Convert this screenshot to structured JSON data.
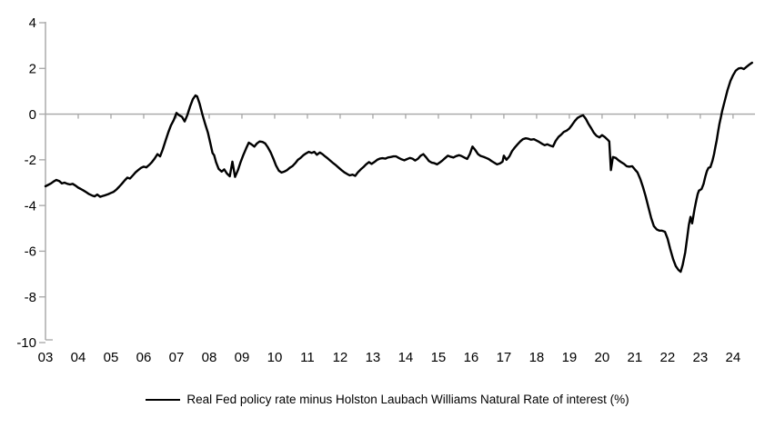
{
  "figure": {
    "legend": {
      "label": "Real Fed policy rate minus Holston Laubach Williams Natural Rate of interest (%)"
    }
  },
  "chart_data": {
    "type": "line",
    "title": "",
    "xlabel": "",
    "ylabel": "",
    "xlim": [
      2003,
      2024.67
    ],
    "ylim": [
      -10,
      4
    ],
    "y_ticks": [
      4,
      2,
      0,
      -2,
      -4,
      -6,
      -8,
      -10
    ],
    "x_tick_labels": [
      "03",
      "04",
      "05",
      "06",
      "07",
      "08",
      "09",
      "10",
      "11",
      "12",
      "13",
      "14",
      "15",
      "16",
      "17",
      "18",
      "19",
      "20",
      "21",
      "22",
      "23",
      "24"
    ],
    "grid": "zero-line-only",
    "legend_position": "bottom-center",
    "colors": {
      "line": "#000000",
      "axis": "#a6a6a6",
      "text": "#000000",
      "background": "#ffffff"
    },
    "series": [
      {
        "name": "Real Fed policy rate minus Holston Laubach Williams Natural Rate of interest (%)",
        "points": [
          [
            2003.0,
            -3.16
          ],
          [
            2003.08,
            -3.1
          ],
          [
            2003.17,
            -3.03
          ],
          [
            2003.25,
            -2.95
          ],
          [
            2003.33,
            -2.88
          ],
          [
            2003.42,
            -2.93
          ],
          [
            2003.5,
            -3.03
          ],
          [
            2003.58,
            -3.0
          ],
          [
            2003.67,
            -3.05
          ],
          [
            2003.75,
            -3.08
          ],
          [
            2003.83,
            -3.05
          ],
          [
            2003.92,
            -3.13
          ],
          [
            2004.0,
            -3.22
          ],
          [
            2004.08,
            -3.28
          ],
          [
            2004.17,
            -3.35
          ],
          [
            2004.25,
            -3.42
          ],
          [
            2004.33,
            -3.5
          ],
          [
            2004.42,
            -3.56
          ],
          [
            2004.5,
            -3.6
          ],
          [
            2004.58,
            -3.52
          ],
          [
            2004.67,
            -3.62
          ],
          [
            2004.75,
            -3.58
          ],
          [
            2004.83,
            -3.55
          ],
          [
            2004.92,
            -3.5
          ],
          [
            2005.0,
            -3.45
          ],
          [
            2005.08,
            -3.4
          ],
          [
            2005.17,
            -3.3
          ],
          [
            2005.25,
            -3.18
          ],
          [
            2005.33,
            -3.05
          ],
          [
            2005.42,
            -2.9
          ],
          [
            2005.5,
            -2.78
          ],
          [
            2005.58,
            -2.82
          ],
          [
            2005.67,
            -2.68
          ],
          [
            2005.75,
            -2.55
          ],
          [
            2005.83,
            -2.45
          ],
          [
            2005.92,
            -2.35
          ],
          [
            2006.0,
            -2.3
          ],
          [
            2006.08,
            -2.33
          ],
          [
            2006.17,
            -2.22
          ],
          [
            2006.25,
            -2.1
          ],
          [
            2006.33,
            -1.95
          ],
          [
            2006.42,
            -1.75
          ],
          [
            2006.5,
            -1.85
          ],
          [
            2006.58,
            -1.55
          ],
          [
            2006.67,
            -1.15
          ],
          [
            2006.75,
            -0.8
          ],
          [
            2006.83,
            -0.5
          ],
          [
            2006.92,
            -0.25
          ],
          [
            2007.0,
            0.05
          ],
          [
            2007.08,
            -0.05
          ],
          [
            2007.17,
            -0.12
          ],
          [
            2007.25,
            -0.32
          ],
          [
            2007.33,
            -0.05
          ],
          [
            2007.42,
            0.35
          ],
          [
            2007.5,
            0.65
          ],
          [
            2007.58,
            0.82
          ],
          [
            2007.63,
            0.78
          ],
          [
            2007.71,
            0.45
          ],
          [
            2007.79,
            0.0
          ],
          [
            2007.88,
            -0.45
          ],
          [
            2007.96,
            -0.8
          ],
          [
            2008.04,
            -1.3
          ],
          [
            2008.1,
            -1.7
          ],
          [
            2008.15,
            -1.8
          ],
          [
            2008.21,
            -2.1
          ],
          [
            2008.29,
            -2.4
          ],
          [
            2008.38,
            -2.52
          ],
          [
            2008.46,
            -2.42
          ],
          [
            2008.54,
            -2.6
          ],
          [
            2008.63,
            -2.72
          ],
          [
            2008.71,
            -2.08
          ],
          [
            2008.79,
            -2.75
          ],
          [
            2008.88,
            -2.45
          ],
          [
            2008.96,
            -2.1
          ],
          [
            2009.04,
            -1.8
          ],
          [
            2009.13,
            -1.5
          ],
          [
            2009.21,
            -1.25
          ],
          [
            2009.29,
            -1.32
          ],
          [
            2009.38,
            -1.42
          ],
          [
            2009.46,
            -1.28
          ],
          [
            2009.54,
            -1.2
          ],
          [
            2009.63,
            -1.22
          ],
          [
            2009.71,
            -1.28
          ],
          [
            2009.79,
            -1.45
          ],
          [
            2009.88,
            -1.68
          ],
          [
            2009.96,
            -1.95
          ],
          [
            2010.04,
            -2.25
          ],
          [
            2010.13,
            -2.48
          ],
          [
            2010.21,
            -2.56
          ],
          [
            2010.29,
            -2.52
          ],
          [
            2010.38,
            -2.45
          ],
          [
            2010.46,
            -2.35
          ],
          [
            2010.54,
            -2.28
          ],
          [
            2010.63,
            -2.15
          ],
          [
            2010.71,
            -2.0
          ],
          [
            2010.79,
            -1.92
          ],
          [
            2010.88,
            -1.8
          ],
          [
            2010.96,
            -1.72
          ],
          [
            2011.04,
            -1.65
          ],
          [
            2011.13,
            -1.7
          ],
          [
            2011.21,
            -1.65
          ],
          [
            2011.29,
            -1.78
          ],
          [
            2011.38,
            -1.68
          ],
          [
            2011.46,
            -1.75
          ],
          [
            2011.54,
            -1.85
          ],
          [
            2011.63,
            -1.95
          ],
          [
            2011.71,
            -2.05
          ],
          [
            2011.79,
            -2.15
          ],
          [
            2011.88,
            -2.25
          ],
          [
            2011.96,
            -2.35
          ],
          [
            2012.04,
            -2.45
          ],
          [
            2012.13,
            -2.55
          ],
          [
            2012.21,
            -2.62
          ],
          [
            2012.29,
            -2.68
          ],
          [
            2012.38,
            -2.65
          ],
          [
            2012.46,
            -2.7
          ],
          [
            2012.54,
            -2.55
          ],
          [
            2012.63,
            -2.42
          ],
          [
            2012.71,
            -2.32
          ],
          [
            2012.79,
            -2.2
          ],
          [
            2012.88,
            -2.1
          ],
          [
            2012.96,
            -2.18
          ],
          [
            2013.04,
            -2.1
          ],
          [
            2013.13,
            -2.0
          ],
          [
            2013.21,
            -1.95
          ],
          [
            2013.29,
            -1.93
          ],
          [
            2013.38,
            -1.95
          ],
          [
            2013.46,
            -1.9
          ],
          [
            2013.54,
            -1.88
          ],
          [
            2013.63,
            -1.85
          ],
          [
            2013.71,
            -1.85
          ],
          [
            2013.79,
            -1.92
          ],
          [
            2013.88,
            -1.98
          ],
          [
            2013.96,
            -2.02
          ],
          [
            2014.04,
            -1.97
          ],
          [
            2014.13,
            -1.92
          ],
          [
            2014.21,
            -1.95
          ],
          [
            2014.29,
            -2.03
          ],
          [
            2014.38,
            -1.95
          ],
          [
            2014.46,
            -1.82
          ],
          [
            2014.54,
            -1.75
          ],
          [
            2014.63,
            -1.9
          ],
          [
            2014.71,
            -2.05
          ],
          [
            2014.79,
            -2.12
          ],
          [
            2014.88,
            -2.15
          ],
          [
            2014.96,
            -2.2
          ],
          [
            2015.04,
            -2.12
          ],
          [
            2015.13,
            -2.02
          ],
          [
            2015.21,
            -1.92
          ],
          [
            2015.29,
            -1.82
          ],
          [
            2015.38,
            -1.87
          ],
          [
            2015.46,
            -1.9
          ],
          [
            2015.54,
            -1.84
          ],
          [
            2015.63,
            -1.8
          ],
          [
            2015.71,
            -1.84
          ],
          [
            2015.79,
            -1.9
          ],
          [
            2015.88,
            -1.96
          ],
          [
            2015.96,
            -1.75
          ],
          [
            2016.04,
            -1.42
          ],
          [
            2016.13,
            -1.58
          ],
          [
            2016.21,
            -1.75
          ],
          [
            2016.29,
            -1.83
          ],
          [
            2016.38,
            -1.87
          ],
          [
            2016.46,
            -1.92
          ],
          [
            2016.54,
            -1.97
          ],
          [
            2016.63,
            -2.06
          ],
          [
            2016.71,
            -2.13
          ],
          [
            2016.79,
            -2.2
          ],
          [
            2016.88,
            -2.16
          ],
          [
            2016.96,
            -2.08
          ],
          [
            2017.0,
            -1.82
          ],
          [
            2017.08,
            -2.0
          ],
          [
            2017.17,
            -1.85
          ],
          [
            2017.25,
            -1.62
          ],
          [
            2017.33,
            -1.47
          ],
          [
            2017.42,
            -1.32
          ],
          [
            2017.5,
            -1.2
          ],
          [
            2017.58,
            -1.1
          ],
          [
            2017.67,
            -1.06
          ],
          [
            2017.75,
            -1.08
          ],
          [
            2017.83,
            -1.12
          ],
          [
            2017.92,
            -1.1
          ],
          [
            2018.0,
            -1.16
          ],
          [
            2018.08,
            -1.22
          ],
          [
            2018.17,
            -1.3
          ],
          [
            2018.25,
            -1.36
          ],
          [
            2018.33,
            -1.32
          ],
          [
            2018.42,
            -1.38
          ],
          [
            2018.5,
            -1.42
          ],
          [
            2018.58,
            -1.18
          ],
          [
            2018.67,
            -1.0
          ],
          [
            2018.75,
            -0.9
          ],
          [
            2018.83,
            -0.78
          ],
          [
            2018.92,
            -0.72
          ],
          [
            2019.0,
            -0.63
          ],
          [
            2019.08,
            -0.48
          ],
          [
            2019.17,
            -0.3
          ],
          [
            2019.25,
            -0.17
          ],
          [
            2019.33,
            -0.1
          ],
          [
            2019.42,
            -0.05
          ],
          [
            2019.5,
            -0.2
          ],
          [
            2019.58,
            -0.42
          ],
          [
            2019.67,
            -0.62
          ],
          [
            2019.75,
            -0.82
          ],
          [
            2019.83,
            -0.95
          ],
          [
            2019.92,
            -1.02
          ],
          [
            2020.0,
            -0.92
          ],
          [
            2020.08,
            -1.0
          ],
          [
            2020.17,
            -1.12
          ],
          [
            2020.22,
            -1.2
          ],
          [
            2020.27,
            -2.45
          ],
          [
            2020.33,
            -1.88
          ],
          [
            2020.42,
            -1.92
          ],
          [
            2020.5,
            -2.02
          ],
          [
            2020.58,
            -2.1
          ],
          [
            2020.67,
            -2.18
          ],
          [
            2020.75,
            -2.28
          ],
          [
            2020.83,
            -2.3
          ],
          [
            2020.92,
            -2.28
          ],
          [
            2021.0,
            -2.42
          ],
          [
            2021.08,
            -2.55
          ],
          [
            2021.17,
            -2.85
          ],
          [
            2021.25,
            -3.2
          ],
          [
            2021.33,
            -3.6
          ],
          [
            2021.42,
            -4.1
          ],
          [
            2021.5,
            -4.55
          ],
          [
            2021.58,
            -4.9
          ],
          [
            2021.67,
            -5.05
          ],
          [
            2021.75,
            -5.1
          ],
          [
            2021.83,
            -5.1
          ],
          [
            2021.92,
            -5.15
          ],
          [
            2022.0,
            -5.45
          ],
          [
            2022.08,
            -5.9
          ],
          [
            2022.17,
            -6.35
          ],
          [
            2022.25,
            -6.65
          ],
          [
            2022.33,
            -6.82
          ],
          [
            2022.4,
            -6.9
          ],
          [
            2022.46,
            -6.6
          ],
          [
            2022.54,
            -6.05
          ],
          [
            2022.6,
            -5.4
          ],
          [
            2022.65,
            -4.85
          ],
          [
            2022.7,
            -4.5
          ],
          [
            2022.75,
            -4.78
          ],
          [
            2022.79,
            -4.45
          ],
          [
            2022.83,
            -4.1
          ],
          [
            2022.88,
            -3.75
          ],
          [
            2022.92,
            -3.5
          ],
          [
            2022.96,
            -3.35
          ],
          [
            2023.04,
            -3.28
          ],
          [
            2023.1,
            -3.05
          ],
          [
            2023.15,
            -2.75
          ],
          [
            2023.2,
            -2.5
          ],
          [
            2023.25,
            -2.35
          ],
          [
            2023.31,
            -2.32
          ],
          [
            2023.37,
            -2.05
          ],
          [
            2023.42,
            -1.75
          ],
          [
            2023.46,
            -1.45
          ],
          [
            2023.5,
            -1.15
          ],
          [
            2023.54,
            -0.8
          ],
          [
            2023.58,
            -0.45
          ],
          [
            2023.63,
            -0.12
          ],
          [
            2023.67,
            0.15
          ],
          [
            2023.75,
            0.6
          ],
          [
            2023.83,
            1.05
          ],
          [
            2023.92,
            1.45
          ],
          [
            2024.0,
            1.7
          ],
          [
            2024.08,
            1.9
          ],
          [
            2024.17,
            2.0
          ],
          [
            2024.25,
            2.02
          ],
          [
            2024.33,
            1.97
          ],
          [
            2024.42,
            2.08
          ],
          [
            2024.5,
            2.17
          ],
          [
            2024.58,
            2.25
          ]
        ]
      }
    ]
  }
}
